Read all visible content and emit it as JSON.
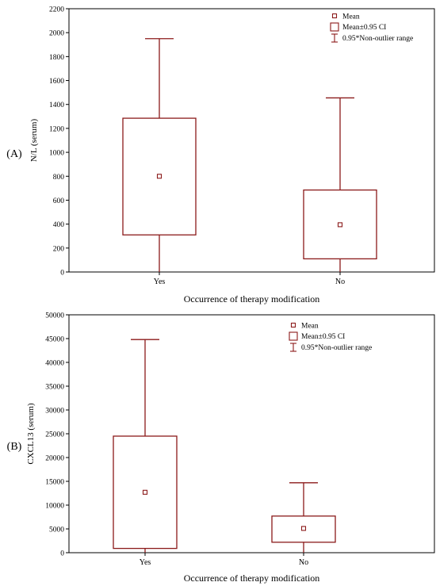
{
  "panels": [
    "(A)",
    "(B)"
  ],
  "chart_data": [
    {
      "type": "box",
      "title": "",
      "panel_label": "(A)",
      "xlabel": "Occurrence of therapy modification",
      "ylabel": "N/L  (serum)",
      "ylim": [
        0,
        2200
      ],
      "yticks": [
        0,
        200,
        400,
        600,
        800,
        1000,
        1200,
        1400,
        1600,
        1800,
        2000,
        2200
      ],
      "categories": [
        "Yes",
        "No"
      ],
      "series": [
        {
          "category": "Yes",
          "mean": 800,
          "ci_low": 310,
          "ci_high": 1285,
          "whisker_low": 0,
          "whisker_high": 1950
        },
        {
          "category": "No",
          "mean": 395,
          "ci_low": 110,
          "ci_high": 685,
          "whisker_low": 0,
          "whisker_high": 1455
        }
      ],
      "legend": {
        "position": "top-right",
        "items": [
          "Mean",
          "Mean±0.95 CI",
          "0.95*Non-outlier range"
        ]
      },
      "color": "#8b1a1a",
      "grid": false
    },
    {
      "type": "box",
      "title": "",
      "panel_label": "(B)",
      "xlabel": "Occurrence of therapy modification",
      "ylabel": "CXCL13 (serum)",
      "ylim": [
        0,
        50000
      ],
      "yticks": [
        0,
        5000,
        10000,
        15000,
        20000,
        25000,
        30000,
        35000,
        40000,
        45000,
        50000
      ],
      "categories": [
        "Yes",
        "No"
      ],
      "series": [
        {
          "category": "Yes",
          "mean": 12700,
          "ci_low": 900,
          "ci_high": 24500,
          "whisker_low": 0,
          "whisker_high": 44800
        },
        {
          "category": "No",
          "mean": 5100,
          "ci_low": 2200,
          "ci_high": 7700,
          "whisker_low": 0,
          "whisker_high": 14700
        }
      ],
      "legend": {
        "position": "top-right",
        "items": [
          "Mean",
          "Mean±0.95 CI",
          "0.95*Non-outlier range"
        ]
      },
      "color": "#8b1a1a",
      "grid": false
    }
  ]
}
